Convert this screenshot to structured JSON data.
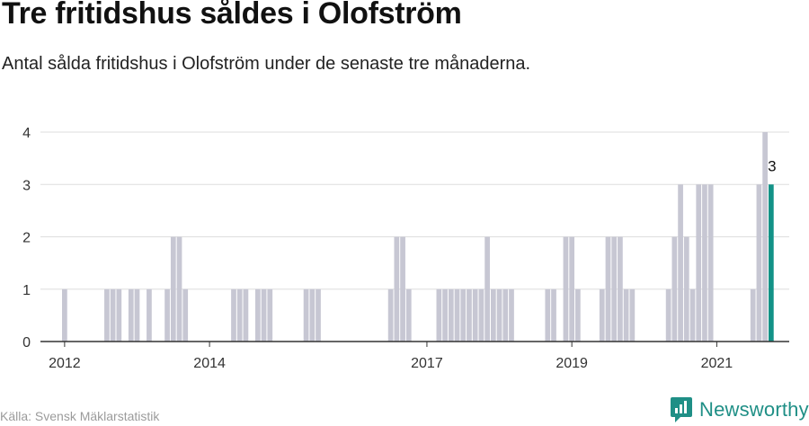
{
  "header": {
    "title": "Tre fritidshus såldes i Olofström",
    "subtitle": "Antal sålda fritidshus i Olofström under de senaste tre månaderna."
  },
  "footer": {
    "source": "Källa: Svensk Mäklarstatistik",
    "brand": "Newsworthy",
    "brand_icon": "newsworthy-logo-icon"
  },
  "colors": {
    "bar": "#c7c7d3",
    "highlight": "#139287",
    "grid": "#dedede",
    "axis": "#333333",
    "brand": "#1f8f86"
  },
  "chart_data": {
    "type": "bar",
    "x_unit": "month",
    "x_start": "2011-10",
    "x_end": "2021-12",
    "ylim": [
      0,
      4
    ],
    "y_ticks": [
      0,
      1,
      2,
      3,
      4
    ],
    "x_tick_labels": [
      "2012",
      "2014",
      "2017",
      "2019",
      "2021"
    ],
    "x_tick_dates": [
      "2012-01",
      "2014-01",
      "2017-01",
      "2019-01",
      "2021-01"
    ],
    "highlight_label": "3",
    "x": [
      "2012-01",
      "2012-08",
      "2012-09",
      "2012-10",
      "2012-12",
      "2013-01",
      "2013-03",
      "2013-06",
      "2013-07",
      "2013-08",
      "2013-09",
      "2014-05",
      "2014-06",
      "2014-07",
      "2014-09",
      "2014-10",
      "2014-11",
      "2015-05",
      "2015-06",
      "2015-07",
      "2016-07",
      "2016-08",
      "2016-09",
      "2016-10",
      "2017-03",
      "2017-04",
      "2017-05",
      "2017-06",
      "2017-07",
      "2017-08",
      "2017-09",
      "2017-10",
      "2017-11",
      "2017-12",
      "2018-01",
      "2018-02",
      "2018-03",
      "2018-09",
      "2018-10",
      "2018-12",
      "2019-01",
      "2019-02",
      "2019-06",
      "2019-07",
      "2019-08",
      "2019-09",
      "2019-10",
      "2019-11",
      "2020-05",
      "2020-06",
      "2020-07",
      "2020-08",
      "2020-09",
      "2020-10",
      "2020-11",
      "2020-12",
      "2021-07",
      "2021-08",
      "2021-09",
      "2021-10"
    ],
    "values": [
      1,
      1,
      1,
      1,
      1,
      1,
      1,
      1,
      2,
      2,
      1,
      1,
      1,
      1,
      1,
      1,
      1,
      1,
      1,
      1,
      1,
      2,
      2,
      1,
      1,
      1,
      1,
      1,
      1,
      1,
      1,
      1,
      2,
      1,
      1,
      1,
      1,
      1,
      1,
      2,
      2,
      1,
      1,
      2,
      2,
      2,
      1,
      1,
      1,
      2,
      3,
      2,
      1,
      3,
      3,
      3,
      1,
      3,
      4,
      3
    ]
  }
}
